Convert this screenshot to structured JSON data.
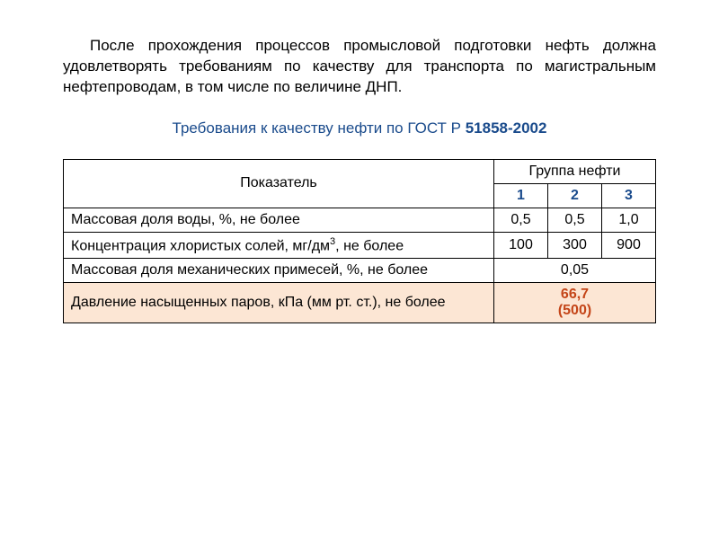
{
  "introText": "После прохождения процессов промысловой подготовки нефть должна удовлетворять требованиям по качеству для транспорта по магистральным нефтепроводам, в том числе по величине ДНП.",
  "subtitle": {
    "text": "Требования к качеству нефти по ГОСТ Р ",
    "bold": "51858-2002"
  },
  "table": {
    "headers": {
      "parameter": "Показатель",
      "group": "Группа нефти",
      "groups": [
        "1",
        "2",
        "3"
      ]
    },
    "rows": [
      {
        "param": "Массовая доля воды, %, не более",
        "values": [
          "0,5",
          "0,5",
          "1,0"
        ],
        "merged": false
      },
      {
        "param_html": "Концентрация хлористых солей, мг/дм<sup>3</sup>, не более",
        "values": [
          "100",
          "300",
          "900"
        ],
        "merged": false
      },
      {
        "param": "Массовая доля механических примесей, %, не более",
        "mergedValue": "0,05",
        "merged": true
      }
    ],
    "highlightedRow": {
      "param": "Давление насыщенных паров, кПа (мм рт. ст.), не более",
      "value": "66,7\n(500)"
    }
  },
  "colors": {
    "titleColor": "#1a4b8c",
    "highlightBg": "#fce6d4",
    "highlightText": "#c44518",
    "borderColor": "#000000",
    "textColor": "#000000"
  },
  "fontSizes": {
    "body": 17,
    "table": 16
  }
}
